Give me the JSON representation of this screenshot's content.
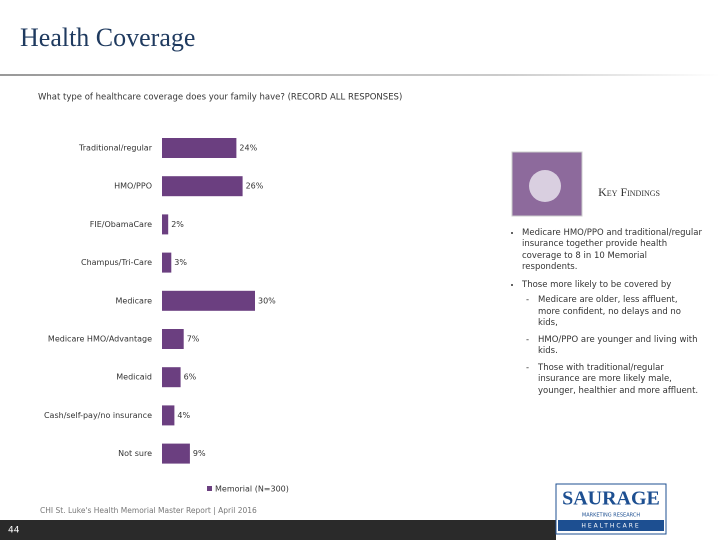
{
  "header": {
    "title": "Health Coverage",
    "question": "What type of healthcare coverage does your family have? (RECORD ALL RESPONSES)"
  },
  "chart_data": {
    "type": "bar",
    "orientation": "horizontal",
    "categories": [
      "Traditional/regular",
      "HMO/PPO",
      "FIE/ObamaCare",
      "Champus/Tri-Care",
      "Medicare",
      "Medicare HMO/Advantage",
      "Medicaid",
      "Cash/self-pay/no insurance",
      "Not sure"
    ],
    "series": [
      {
        "name": "Memorial (N=300)",
        "color": "#6b3f80",
        "values": [
          24,
          26,
          2,
          3,
          30,
          7,
          6,
          4,
          9
        ],
        "value_labels": [
          "24%",
          "26%",
          "2%",
          "3%",
          "30%",
          "7%",
          "6%",
          "4%",
          "9%"
        ]
      }
    ]
  },
  "key_findings": {
    "title": "Key Findings",
    "bullets": [
      "Medicare HMO/PPO and traditional/regular insurance together provide health coverage to 8 in 10 Memorial respondents.",
      "Those more likely to be covered by"
    ],
    "sub_bullets": [
      "Medicare are older, less affluent, more confident, no delays and no kids,",
      "HMO/PPO are younger and living with kids.",
      "Those with traditional/regular insurance are more likely male, younger, healthier and more affluent."
    ]
  },
  "footer": {
    "source": "CHI St. Luke's Health Memorial Master Report | April 2016",
    "page": "44"
  },
  "logo": {
    "name": "SAURAGE",
    "tagline": "MARKETING RESEARCH",
    "division": "HEALTHCARE"
  }
}
